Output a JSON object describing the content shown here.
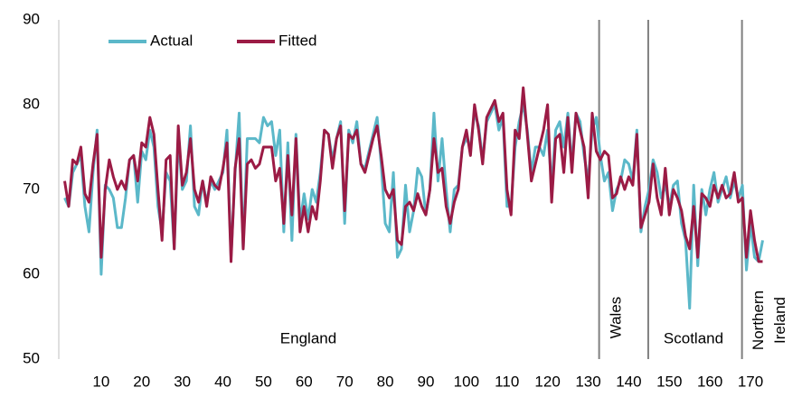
{
  "chart_data": {
    "type": "line",
    "x": [
      1,
      2,
      3,
      4,
      5,
      6,
      7,
      8,
      9,
      10,
      11,
      12,
      13,
      14,
      15,
      16,
      17,
      18,
      19,
      20,
      21,
      22,
      23,
      24,
      25,
      26,
      27,
      28,
      29,
      30,
      31,
      32,
      33,
      34,
      35,
      36,
      37,
      38,
      39,
      40,
      41,
      42,
      43,
      44,
      45,
      46,
      47,
      48,
      49,
      50,
      51,
      52,
      53,
      54,
      55,
      56,
      57,
      58,
      59,
      60,
      61,
      62,
      63,
      64,
      65,
      66,
      67,
      68,
      69,
      70,
      71,
      72,
      73,
      74,
      75,
      76,
      77,
      78,
      79,
      80,
      81,
      82,
      83,
      84,
      85,
      86,
      87,
      88,
      89,
      90,
      91,
      92,
      93,
      94,
      95,
      96,
      97,
      98,
      99,
      100,
      101,
      102,
      103,
      104,
      105,
      106,
      107,
      108,
      109,
      110,
      111,
      112,
      113,
      114,
      115,
      116,
      117,
      118,
      119,
      120,
      121,
      122,
      123,
      124,
      125,
      126,
      127,
      128,
      129,
      130,
      131,
      132,
      133,
      134,
      135,
      136,
      137,
      138,
      139,
      140,
      141,
      142,
      143,
      144,
      145,
      146,
      147,
      148,
      149,
      150,
      151,
      152,
      153,
      154,
      155,
      156,
      157,
      158,
      159,
      160,
      161,
      162,
      163,
      164,
      165,
      166,
      167,
      168,
      169,
      170,
      171,
      172,
      173
    ],
    "series": [
      {
        "name": "Actual",
        "color": "#5bb8c9",
        "values": [
          69,
          68,
          72,
          73,
          74,
          68,
          65,
          72,
          77,
          60,
          70.5,
          70,
          69,
          65.5,
          65.5,
          69,
          73.5,
          74,
          68.5,
          74.5,
          73.5,
          77,
          75,
          68,
          65,
          72,
          71,
          63,
          76,
          70,
          71,
          77.5,
          68,
          67,
          71,
          68.5,
          71,
          70,
          71,
          72,
          77,
          62,
          72,
          79,
          63,
          76,
          76,
          76,
          75.5,
          78.5,
          77.5,
          78,
          74,
          77,
          65,
          75.5,
          64,
          76.5,
          66,
          69.5,
          66.5,
          70,
          68.5,
          72,
          77,
          76.5,
          73.5,
          76,
          78,
          66,
          77,
          75.5,
          78,
          73,
          72.5,
          74.5,
          76.5,
          78.5,
          73,
          66,
          65,
          72,
          62,
          63,
          70.5,
          65,
          67.5,
          72.5,
          71.5,
          67,
          70,
          79,
          71,
          76,
          70,
          65,
          70,
          70.5,
          75,
          76,
          75,
          79,
          77.5,
          73.5,
          78,
          79,
          80,
          77,
          78.5,
          68,
          68,
          75,
          78,
          80,
          77,
          72,
          75,
          75,
          74,
          77,
          70.5,
          77,
          78,
          75,
          79,
          73,
          79,
          78,
          74,
          71,
          77,
          78.5,
          74,
          71,
          72,
          67.5,
          70,
          71,
          73.5,
          73,
          71,
          77,
          65,
          68,
          70,
          73.5,
          72,
          69,
          70.5,
          68,
          70.5,
          71,
          66,
          64,
          56,
          70.5,
          61,
          70,
          67,
          70,
          72,
          68.5,
          70,
          71.5,
          69,
          71,
          69,
          70.5,
          60.5,
          66,
          62,
          61.5,
          64
        ]
      },
      {
        "name": "Fitted",
        "color": "#9b1b45",
        "values": [
          71,
          68,
          73.5,
          73,
          75,
          69.5,
          68.5,
          73,
          76.5,
          62,
          70,
          73.5,
          71.5,
          70,
          71,
          70,
          73.5,
          74,
          71,
          75.5,
          75,
          78.5,
          76.5,
          70,
          64,
          73.5,
          74,
          63,
          77.5,
          70.5,
          72,
          76,
          70,
          68.5,
          71,
          68,
          71.5,
          70.5,
          70,
          72.5,
          75.5,
          61.5,
          72.5,
          76,
          63,
          73,
          73.5,
          72.5,
          73,
          75,
          75,
          75,
          71,
          72.5,
          66,
          74,
          67,
          76,
          65,
          68,
          65,
          68,
          66.5,
          71,
          77,
          76.5,
          72.5,
          76,
          77.5,
          67.5,
          76.5,
          76,
          77,
          73,
          72,
          74,
          76,
          77.5,
          74,
          70,
          69,
          70,
          64,
          63.5,
          68,
          68.5,
          67.5,
          69.5,
          68,
          67,
          70,
          76,
          72,
          72.5,
          68,
          66,
          68.5,
          70,
          75,
          77,
          74,
          80,
          77,
          73,
          78.5,
          79.5,
          80.5,
          78,
          79,
          70,
          67,
          77,
          76,
          82,
          76.5,
          71,
          73,
          75,
          77,
          80,
          68.5,
          76,
          76.5,
          72,
          78.5,
          72,
          79,
          77,
          75,
          69,
          79,
          74.5,
          73.5,
          74.5,
          74,
          69,
          69.5,
          71.5,
          70,
          71.5,
          70.5,
          76.5,
          65.5,
          67,
          68.5,
          73,
          69,
          67,
          72.5,
          67,
          70,
          69,
          67.5,
          64.5,
          63,
          68,
          62,
          69.5,
          69,
          68,
          70.5,
          69,
          70.5,
          69,
          69.5,
          72,
          68.5,
          69,
          62,
          67.5,
          64,
          61.5,
          61.5
        ]
      }
    ],
    "xlim": [
      0,
      174
    ],
    "xticks": [
      10,
      20,
      30,
      40,
      50,
      60,
      70,
      80,
      90,
      100,
      110,
      120,
      130,
      140,
      150,
      160,
      170
    ],
    "ylim": [
      50,
      90
    ],
    "yticks": [
      50,
      60,
      70,
      80,
      90
    ],
    "dividers": [
      132.7,
      144.8,
      167.9
    ],
    "regions": [
      "England",
      "Wales",
      "Scotland",
      "Northern Ireland"
    ],
    "legend": "top-left"
  }
}
